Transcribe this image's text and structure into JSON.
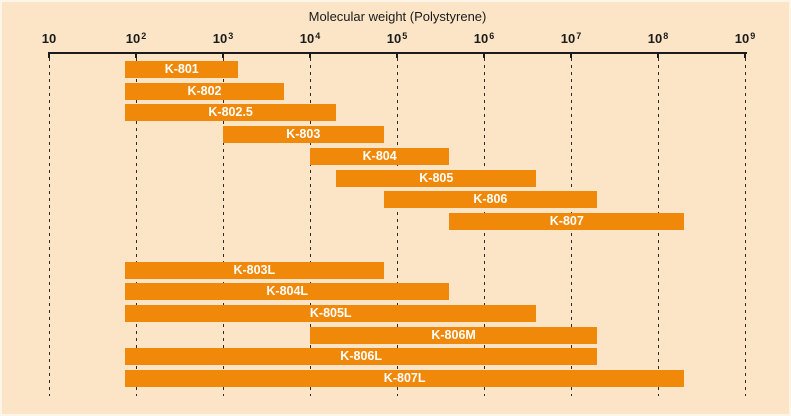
{
  "colors": {
    "background": "#fbe5c6",
    "bar": "#f0890a",
    "bar_label": "#ffffff",
    "axis": "#1b1b1b"
  },
  "chart_data": {
    "type": "bar",
    "orientation": "horizontal",
    "title": "Molecular weight (Polystyrene)",
    "x_scale": "log10",
    "x_range": [
      10,
      1000000000
    ],
    "x_ticks": [
      "10",
      "10^2",
      "10^3",
      "10^4",
      "10^5",
      "10^6",
      "10^7",
      "10^8",
      "10^9"
    ],
    "grid": "vertical-dashed",
    "legend": "none",
    "groups": [
      {
        "bars": [
          {
            "label": "K-801",
            "mw_range": [
              75,
              1500
            ]
          },
          {
            "label": "K-802",
            "mw_range": [
              75,
              5000
            ]
          },
          {
            "label": "K-802.5",
            "mw_range": [
              75,
              20000
            ]
          },
          {
            "label": "K-803",
            "mw_range": [
              1000,
              70000
            ]
          },
          {
            "label": "K-804",
            "mw_range": [
              10000,
              400000
            ]
          },
          {
            "label": "K-805",
            "mw_range": [
              20000,
              4000000
            ]
          },
          {
            "label": "K-806",
            "mw_range": [
              70000,
              20000000
            ]
          },
          {
            "label": "K-807",
            "mw_range": [
              400000,
              200000000
            ]
          }
        ]
      },
      {
        "bars": [
          {
            "label": "K-803L",
            "mw_range": [
              75,
              70000
            ]
          },
          {
            "label": "K-804L",
            "mw_range": [
              75,
              400000
            ]
          },
          {
            "label": "K-805L",
            "mw_range": [
              75,
              4000000
            ]
          },
          {
            "label": "K-806M",
            "mw_range": [
              10000,
              20000000
            ]
          },
          {
            "label": "K-806L",
            "mw_range": [
              75,
              20000000
            ]
          },
          {
            "label": "K-807L",
            "mw_range": [
              75,
              200000000
            ]
          }
        ]
      }
    ]
  }
}
